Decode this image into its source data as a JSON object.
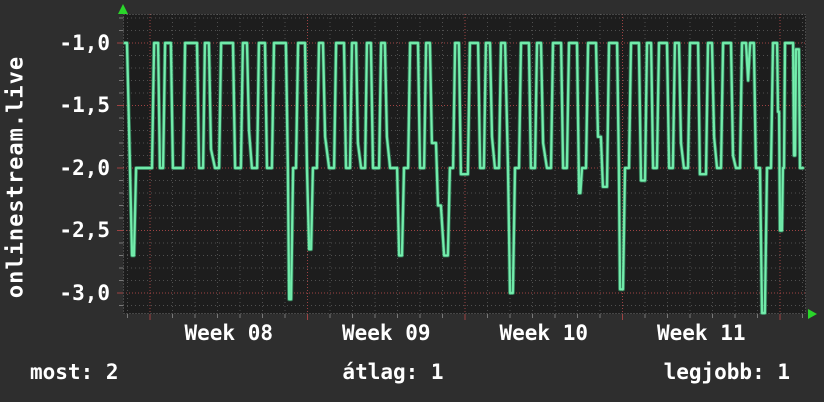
{
  "page": {
    "background_color": "#2e2e2e",
    "plot_background_color": "#1d1d1d",
    "text_color": "#ffffff"
  },
  "footer": {
    "left": "most: 2",
    "center": "átlag: 1",
    "right": "legjobb: 1"
  },
  "chart_data": {
    "type": "line",
    "title": "",
    "ylabel": "onlinestream.live",
    "xlabel": "",
    "legend_position": "none",
    "grid": {
      "on": true,
      "minor_color": "#4f4f4f",
      "major_color": "#9e4343",
      "frame_color": "#6e6e6e",
      "tick_minor_color": "#777777",
      "tick_major_color": "#9e4343"
    },
    "arrow_color": "#2ad62a",
    "x_axis": {
      "unit": "days",
      "tick_labels": [
        "Week 08",
        "Week 09",
        "Week 10",
        "Week 11"
      ],
      "tick_label_days": [
        4.7,
        11.7,
        18.7,
        25.7
      ],
      "week_boundary_days": [
        1.2,
        8.2,
        15.2,
        22.2,
        29.2
      ],
      "minor_start_day": 0.2,
      "minor_step_days": 1,
      "max_day": 30.4
    },
    "y_axis": {
      "tick_labels": [
        "-1,0",
        "-1,5",
        "-2,0",
        "-2,5",
        "-3,0"
      ],
      "tick_values": [
        -1.0,
        -1.5,
        -2.0,
        -2.5,
        -3.0
      ],
      "minor_step": 0.1,
      "range_top": -0.77,
      "range_bottom": -3.18
    },
    "stats": [
      {
        "label": "most",
        "value": 2
      },
      {
        "label": "átlag",
        "value": 1
      },
      {
        "label": "legjobb",
        "value": 1
      }
    ],
    "series": [
      {
        "name": "onlinestream.live",
        "color": "#66e2a0",
        "color_core": "#7bf0b2",
        "color_edge": "#3fae79",
        "points": [
          [
            0.09,
            -1
          ],
          [
            0.18,
            -1
          ],
          [
            0.31,
            -2
          ],
          [
            0.4,
            -2.7
          ],
          [
            0.49,
            -2.7
          ],
          [
            0.58,
            -2
          ],
          [
            1.29,
            -2
          ],
          [
            1.38,
            -1
          ],
          [
            1.56,
            -1
          ],
          [
            1.64,
            -2
          ],
          [
            1.78,
            -2
          ],
          [
            1.87,
            -1
          ],
          [
            2.13,
            -1
          ],
          [
            2.22,
            -2
          ],
          [
            2.67,
            -2
          ],
          [
            2.76,
            -1
          ],
          [
            3.29,
            -1
          ],
          [
            3.38,
            -2
          ],
          [
            3.56,
            -2
          ],
          [
            3.64,
            -1
          ],
          [
            3.82,
            -1
          ],
          [
            3.91,
            -1.85
          ],
          [
            4.09,
            -2
          ],
          [
            4.27,
            -2
          ],
          [
            4.36,
            -1
          ],
          [
            4.89,
            -1
          ],
          [
            4.98,
            -2
          ],
          [
            5.24,
            -2
          ],
          [
            5.33,
            -1
          ],
          [
            5.51,
            -1
          ],
          [
            5.6,
            -1.7
          ],
          [
            5.73,
            -2
          ],
          [
            5.96,
            -2
          ],
          [
            6.04,
            -1
          ],
          [
            6.31,
            -1
          ],
          [
            6.4,
            -2
          ],
          [
            6.62,
            -2
          ],
          [
            6.71,
            -1
          ],
          [
            7.24,
            -1
          ],
          [
            7.33,
            -2
          ],
          [
            7.38,
            -3.05
          ],
          [
            7.47,
            -3.05
          ],
          [
            7.56,
            -2
          ],
          [
            7.69,
            -2
          ],
          [
            7.78,
            -1
          ],
          [
            8.09,
            -1
          ],
          [
            8.18,
            -2
          ],
          [
            8.27,
            -2.65
          ],
          [
            8.36,
            -2.65
          ],
          [
            8.44,
            -2
          ],
          [
            8.62,
            -2
          ],
          [
            8.71,
            -1
          ],
          [
            8.89,
            -1
          ],
          [
            8.98,
            -1.75
          ],
          [
            9.16,
            -2
          ],
          [
            9.38,
            -2
          ],
          [
            9.47,
            -1
          ],
          [
            9.82,
            -1
          ],
          [
            9.91,
            -2
          ],
          [
            10.09,
            -2
          ],
          [
            10.18,
            -1
          ],
          [
            10.36,
            -1
          ],
          [
            10.44,
            -1.8
          ],
          [
            10.58,
            -2
          ],
          [
            10.76,
            -2
          ],
          [
            10.84,
            -1
          ],
          [
            11.02,
            -1
          ],
          [
            11.11,
            -2
          ],
          [
            11.38,
            -2
          ],
          [
            11.47,
            -1
          ],
          [
            11.64,
            -1
          ],
          [
            11.73,
            -1.75
          ],
          [
            11.87,
            -2
          ],
          [
            12.18,
            -2
          ],
          [
            12.27,
            -2.7
          ],
          [
            12.4,
            -2.7
          ],
          [
            12.49,
            -2
          ],
          [
            12.67,
            -2
          ],
          [
            12.76,
            -1
          ],
          [
            13.11,
            -1
          ],
          [
            13.2,
            -2
          ],
          [
            13.38,
            -2
          ],
          [
            13.47,
            -1
          ],
          [
            13.64,
            -1
          ],
          [
            13.73,
            -1.8
          ],
          [
            13.91,
            -1.8
          ],
          [
            14.0,
            -2.3
          ],
          [
            14.13,
            -2.3
          ],
          [
            14.27,
            -2.7
          ],
          [
            14.44,
            -2.7
          ],
          [
            14.53,
            -2
          ],
          [
            14.67,
            -2
          ],
          [
            14.76,
            -1
          ],
          [
            14.93,
            -1
          ],
          [
            15.02,
            -2.05
          ],
          [
            15.33,
            -2.05
          ],
          [
            15.42,
            -1
          ],
          [
            15.78,
            -1
          ],
          [
            15.87,
            -2
          ],
          [
            16.04,
            -2
          ],
          [
            16.13,
            -1
          ],
          [
            16.31,
            -1
          ],
          [
            16.4,
            -1.75
          ],
          [
            16.53,
            -2
          ],
          [
            16.71,
            -2
          ],
          [
            16.8,
            -1
          ],
          [
            16.98,
            -1
          ],
          [
            17.11,
            -2
          ],
          [
            17.2,
            -3.0
          ],
          [
            17.33,
            -3.0
          ],
          [
            17.42,
            -2
          ],
          [
            17.6,
            -2
          ],
          [
            17.69,
            -1
          ],
          [
            18.04,
            -1
          ],
          [
            18.13,
            -2
          ],
          [
            18.31,
            -2
          ],
          [
            18.4,
            -1
          ],
          [
            18.58,
            -1
          ],
          [
            18.67,
            -1.8
          ],
          [
            18.84,
            -2
          ],
          [
            19.02,
            -2
          ],
          [
            19.11,
            -1
          ],
          [
            19.47,
            -1
          ],
          [
            19.56,
            -2
          ],
          [
            19.73,
            -2
          ],
          [
            19.82,
            -1
          ],
          [
            20.18,
            -1
          ],
          [
            20.27,
            -2.2
          ],
          [
            20.33,
            -2.2
          ],
          [
            20.4,
            -2
          ],
          [
            20.58,
            -2
          ],
          [
            20.67,
            -1
          ],
          [
            21.02,
            -1
          ],
          [
            21.11,
            -1.75
          ],
          [
            21.24,
            -1.75
          ],
          [
            21.33,
            -2.15
          ],
          [
            21.51,
            -2.15
          ],
          [
            21.6,
            -1
          ],
          [
            21.96,
            -1
          ],
          [
            22.04,
            -2
          ],
          [
            22.09,
            -2.97
          ],
          [
            22.22,
            -2.97
          ],
          [
            22.31,
            -2
          ],
          [
            22.49,
            -2
          ],
          [
            22.58,
            -1
          ],
          [
            22.93,
            -1
          ],
          [
            23.02,
            -2.1
          ],
          [
            23.2,
            -2.1
          ],
          [
            23.29,
            -1
          ],
          [
            23.47,
            -1
          ],
          [
            23.56,
            -2
          ],
          [
            23.73,
            -2
          ],
          [
            23.82,
            -1
          ],
          [
            24.18,
            -1
          ],
          [
            24.27,
            -2
          ],
          [
            24.44,
            -2
          ],
          [
            24.53,
            -1
          ],
          [
            24.71,
            -1
          ],
          [
            24.8,
            -1.8
          ],
          [
            24.93,
            -2
          ],
          [
            25.11,
            -2
          ],
          [
            25.2,
            -1
          ],
          [
            25.56,
            -1
          ],
          [
            25.64,
            -2.05
          ],
          [
            25.91,
            -2.05
          ],
          [
            26.0,
            -1
          ],
          [
            26.18,
            -1
          ],
          [
            26.27,
            -1.75
          ],
          [
            26.4,
            -2
          ],
          [
            26.58,
            -2
          ],
          [
            26.67,
            -1
          ],
          [
            27.02,
            -1
          ],
          [
            27.11,
            -1.9
          ],
          [
            27.24,
            -2
          ],
          [
            27.42,
            -2
          ],
          [
            27.51,
            -1
          ],
          [
            27.69,
            -1
          ],
          [
            27.78,
            -1.3
          ],
          [
            27.87,
            -1
          ],
          [
            28.04,
            -1
          ],
          [
            28.13,
            -2
          ],
          [
            28.31,
            -2
          ],
          [
            28.4,
            -3.16
          ],
          [
            28.53,
            -3.16
          ],
          [
            28.62,
            -2
          ],
          [
            28.8,
            -2
          ],
          [
            28.89,
            -1
          ],
          [
            29.07,
            -1
          ],
          [
            29.11,
            -1.55
          ],
          [
            29.16,
            -1.55
          ],
          [
            29.2,
            -2.5
          ],
          [
            29.29,
            -2.5
          ],
          [
            29.33,
            -2
          ],
          [
            29.38,
            -2
          ],
          [
            29.42,
            -1
          ],
          [
            29.78,
            -1
          ],
          [
            29.82,
            -1.9
          ],
          [
            29.87,
            -1.9
          ],
          [
            29.91,
            -1.05
          ],
          [
            30.04,
            -1.05
          ],
          [
            30.09,
            -2
          ],
          [
            30.22,
            -2
          ]
        ]
      }
    ]
  }
}
